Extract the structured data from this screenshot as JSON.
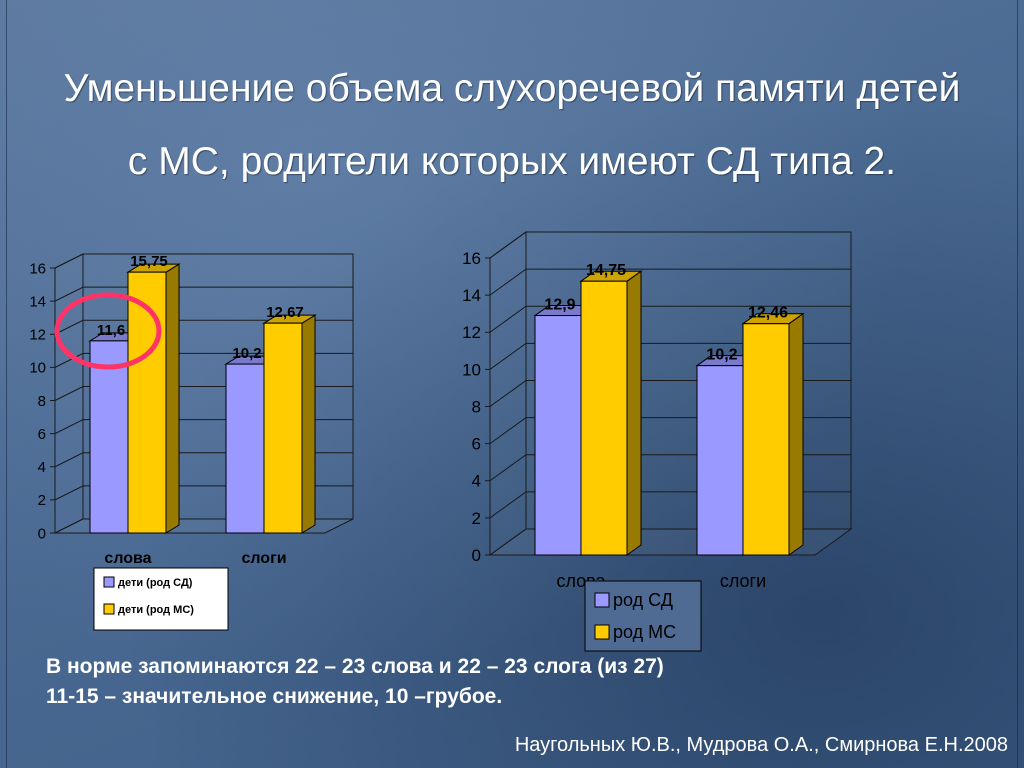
{
  "slide": {
    "title_line1": "Уменьшение объема слухоречевой памяти детей",
    "title_line2": "с МС, родители которых имеют СД  типа 2.",
    "note_line1": "В норме запоминаются 22 – 23 слова и 22 – 23 слога (из 27)",
    "note_line2": "11-15 – значительное снижение, 10 –грубое.",
    "source": "Наугольных Ю.В., Мудрова О.А., Смирнова Е.Н.2008"
  },
  "colors": {
    "series1": "#9999ff",
    "series2": "#ffcc00",
    "highlight_circle": "#ff3366"
  },
  "chart_data": [
    {
      "type": "bar",
      "categories": [
        "слова",
        "слоги"
      ],
      "series": [
        {
          "name": "дети (род СД)",
          "values": [
            11.6,
            10.2
          ],
          "labels": [
            "11,6",
            "10,2"
          ]
        },
        {
          "name": "дети (род МС)",
          "values": [
            15.75,
            12.67
          ],
          "labels": [
            "15,75",
            "12,67"
          ]
        }
      ],
      "yticks": [
        "0",
        "2",
        "4",
        "6",
        "8",
        "10",
        "12",
        "14",
        "16"
      ],
      "ylim": [
        0,
        16
      ],
      "legend": "bottom",
      "highlighted_value": "11,6"
    },
    {
      "type": "bar",
      "categories": [
        "слова",
        "слоги"
      ],
      "series": [
        {
          "name": "род СД",
          "values": [
            12.9,
            10.2
          ],
          "labels": [
            "12,9",
            "10,2"
          ]
        },
        {
          "name": "род МС",
          "values": [
            14.75,
            12.46
          ],
          "labels": [
            "14,75",
            "12,46"
          ]
        }
      ],
      "yticks": [
        "0",
        "2",
        "4",
        "6",
        "8",
        "10",
        "12",
        "14",
        "16"
      ],
      "ylim": [
        0,
        16
      ],
      "legend": "bottom"
    }
  ]
}
